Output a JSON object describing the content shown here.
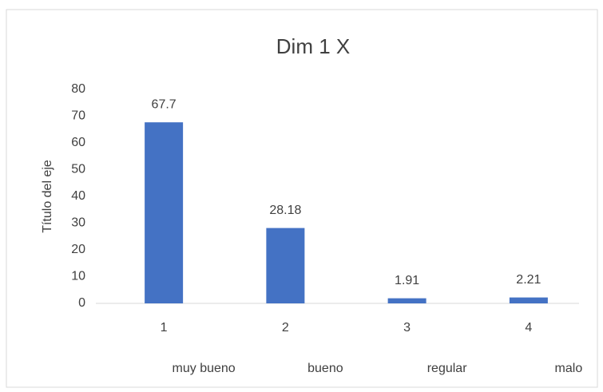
{
  "chart_data": {
    "type": "bar",
    "title": "Dim 1 X",
    "y_label": "Título del eje",
    "categories": [
      "1",
      "2",
      "3",
      "4"
    ],
    "category_groups": [
      "muy bueno",
      "bueno",
      "regular",
      "malo"
    ],
    "values": [
      67.7,
      28.18,
      1.91,
      2.21
    ],
    "color": "#4472c4",
    "ylim": [
      0,
      80
    ],
    "yticks": [
      0,
      10,
      20,
      30,
      40,
      50,
      60,
      70,
      80
    ],
    "grid": false,
    "data_labels": true
  }
}
